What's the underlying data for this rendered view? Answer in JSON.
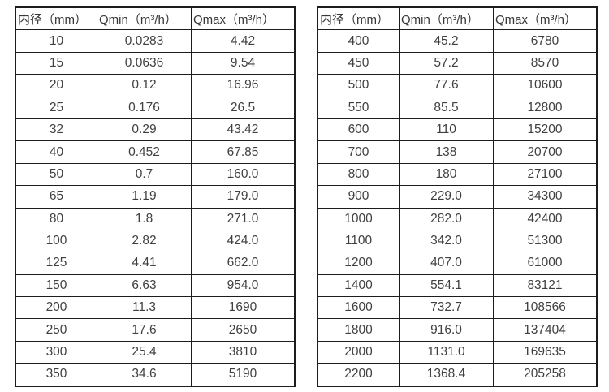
{
  "columns": [
    "内径（mm）",
    "Qmin（m³/h）",
    "Qmax（m³/h）"
  ],
  "tables": [
    {
      "rows": [
        [
          "10",
          "0.0283",
          "4.42"
        ],
        [
          "15",
          "0.0636",
          "9.54"
        ],
        [
          "20",
          "0.12",
          "16.96"
        ],
        [
          "25",
          "0.176",
          "26.5"
        ],
        [
          "32",
          "0.29",
          "43.42"
        ],
        [
          "40",
          "0.452",
          "67.85"
        ],
        [
          "50",
          "0.7",
          "160.0"
        ],
        [
          "65",
          "1.19",
          "179.0"
        ],
        [
          "80",
          "1.8",
          "271.0"
        ],
        [
          "100",
          "2.82",
          "424.0"
        ],
        [
          "125",
          "4.41",
          "662.0"
        ],
        [
          "150",
          "6.63",
          "954.0"
        ],
        [
          "200",
          "11.3",
          "1690"
        ],
        [
          "250",
          "17.6",
          "2650"
        ],
        [
          "300",
          "25.4",
          "3810"
        ],
        [
          "350",
          "34.6",
          "5190"
        ]
      ]
    },
    {
      "rows": [
        [
          "400",
          "45.2",
          "6780"
        ],
        [
          "450",
          "57.2",
          "8570"
        ],
        [
          "500",
          "77.6",
          "10600"
        ],
        [
          "550",
          "85.5",
          "12800"
        ],
        [
          "600",
          "110",
          "15200"
        ],
        [
          "700",
          "138",
          "20700"
        ],
        [
          "800",
          "180",
          "27100"
        ],
        [
          "900",
          "229.0",
          "34300"
        ],
        [
          "1000",
          "282.0",
          "42400"
        ],
        [
          "1100",
          "342.0",
          "51300"
        ],
        [
          "1200",
          "407.0",
          "61000"
        ],
        [
          "1400",
          "554.1",
          "83121"
        ],
        [
          "1600",
          "732.7",
          "108566"
        ],
        [
          "1800",
          "916.0",
          "137404"
        ],
        [
          "2000",
          "1131.0",
          "169635"
        ],
        [
          "2200",
          "1368.4",
          "205258"
        ]
      ]
    }
  ],
  "colors": {
    "border": "#1c1c1c",
    "text": "#404040",
    "background": "#ffffff"
  }
}
